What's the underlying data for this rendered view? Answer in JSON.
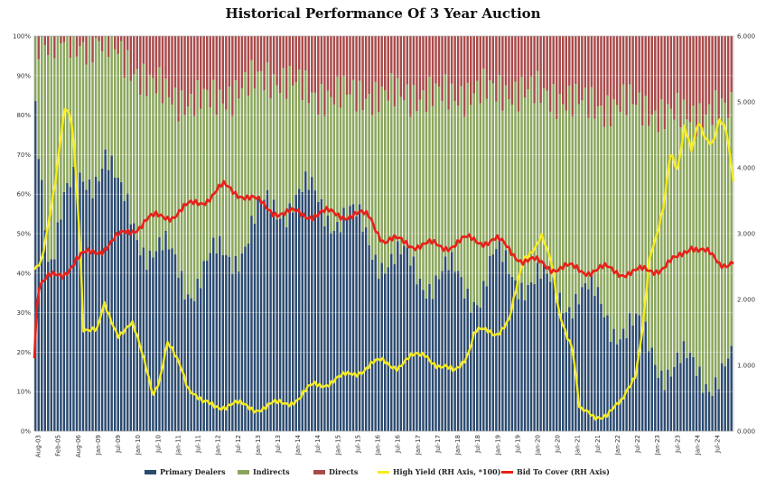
{
  "chart_data": {
    "type": "bar",
    "title": "Historical Performance Of 3 Year Auction",
    "stacked_percent": true,
    "left_axis": {
      "ylim": [
        0,
        100
      ],
      "ticks": [
        "0%",
        "10%",
        "20%",
        "30%",
        "40%",
        "50%",
        "60%",
        "70%",
        "80%",
        "90%",
        "100%"
      ]
    },
    "right_axis": {
      "ylim": [
        0,
        6
      ],
      "ticks": [
        "0.000",
        "1.000",
        "2.000",
        "3.000",
        "4.000",
        "5.000",
        "6.000"
      ]
    },
    "x_ticks": [
      "Aug-03",
      "Feb-05",
      "Aug-06",
      "Jan-09",
      "Jul-09",
      "Jan-10",
      "Jul-10",
      "Jan-11",
      "Jul-11",
      "Jan-12",
      "Jul-12",
      "Jan-13",
      "Jul-13",
      "Jan-14",
      "Jul-14",
      "Jan-15",
      "Jul-15",
      "Jan-16",
      "Jul-16",
      "Jan-17",
      "Jul-17",
      "Jan-18",
      "Jul-18",
      "Jan-19",
      "Jul-19",
      "Jan-20",
      "Jul-20",
      "Jan-21",
      "Jul-21",
      "Jan-22",
      "Jul-22",
      "Jan-23",
      "Jul-23",
      "Jan-24",
      "Jul-24"
    ],
    "grid": true,
    "legend_position": "bottom",
    "series": [
      {
        "name": "Primary Dealers",
        "axis": "left",
        "kind": "bar",
        "color": "#2b4a6f",
        "keypoints": [
          [
            0,
            80
          ],
          [
            0.02,
            45
          ],
          [
            0.04,
            58
          ],
          [
            0.06,
            60
          ],
          [
            0.08,
            65
          ],
          [
            0.1,
            72
          ],
          [
            0.12,
            58
          ],
          [
            0.16,
            48
          ],
          [
            0.22,
            38
          ],
          [
            0.28,
            45
          ],
          [
            0.33,
            55
          ],
          [
            0.37,
            60
          ],
          [
            0.4,
            58
          ],
          [
            0.44,
            55
          ],
          [
            0.48,
            48
          ],
          [
            0.52,
            42
          ],
          [
            0.56,
            40
          ],
          [
            0.6,
            38
          ],
          [
            0.64,
            36
          ],
          [
            0.66,
            42
          ],
          [
            0.7,
            40
          ],
          [
            0.74,
            35
          ],
          [
            0.78,
            35
          ],
          [
            0.82,
            30
          ],
          [
            0.86,
            25
          ],
          [
            0.9,
            18
          ],
          [
            0.94,
            15
          ],
          [
            0.97,
            15
          ],
          [
            1.0,
            15
          ]
        ]
      },
      {
        "name": "Indirects",
        "axis": "left",
        "kind": "bar",
        "color": "#8aa65c",
        "keypoints": [
          [
            0,
            20
          ],
          [
            0.02,
            53
          ],
          [
            0.04,
            40
          ],
          [
            0.06,
            38
          ],
          [
            0.08,
            33
          ],
          [
            0.1,
            26
          ],
          [
            0.12,
            38
          ],
          [
            0.16,
            40
          ],
          [
            0.22,
            45
          ],
          [
            0.28,
            40
          ],
          [
            0.33,
            35
          ],
          [
            0.37,
            28
          ],
          [
            0.4,
            27
          ],
          [
            0.44,
            30
          ],
          [
            0.48,
            37
          ],
          [
            0.52,
            43
          ],
          [
            0.56,
            45
          ],
          [
            0.6,
            47
          ],
          [
            0.64,
            50
          ],
          [
            0.66,
            44
          ],
          [
            0.7,
            46
          ],
          [
            0.74,
            50
          ],
          [
            0.78,
            48
          ],
          [
            0.82,
            52
          ],
          [
            0.86,
            58
          ],
          [
            0.9,
            62
          ],
          [
            0.94,
            65
          ],
          [
            0.97,
            66
          ],
          [
            1.0,
            66
          ]
        ]
      },
      {
        "name": "Directs",
        "axis": "left",
        "kind": "bar",
        "color": "#a94a4a"
      },
      {
        "name": "High Yield (RH Axis, *100)",
        "axis": "right",
        "kind": "line",
        "color": "#f6ec1f",
        "keypoints": [
          [
            0,
            2.4
          ],
          [
            0.01,
            2.6
          ],
          [
            0.02,
            3.2
          ],
          [
            0.03,
            3.8
          ],
          [
            0.04,
            4.6
          ],
          [
            0.045,
            4.9
          ],
          [
            0.055,
            4.6
          ],
          [
            0.065,
            3.0
          ],
          [
            0.07,
            1.6
          ],
          [
            0.09,
            1.5
          ],
          [
            0.1,
            1.9
          ],
          [
            0.12,
            1.5
          ],
          [
            0.14,
            1.6
          ],
          [
            0.16,
            1.0
          ],
          [
            0.17,
            0.6
          ],
          [
            0.18,
            0.8
          ],
          [
            0.19,
            1.3
          ],
          [
            0.21,
            1.0
          ],
          [
            0.22,
            0.7
          ],
          [
            0.24,
            0.4
          ],
          [
            0.28,
            0.4
          ],
          [
            0.33,
            0.35
          ],
          [
            0.36,
            0.45
          ],
          [
            0.38,
            0.5
          ],
          [
            0.4,
            0.7
          ],
          [
            0.44,
            0.8
          ],
          [
            0.48,
            1.0
          ],
          [
            0.5,
            1.05
          ],
          [
            0.52,
            1.0
          ],
          [
            0.54,
            1.1
          ],
          [
            0.56,
            1.2
          ],
          [
            0.58,
            0.95
          ],
          [
            0.6,
            0.9
          ],
          [
            0.62,
            1.2
          ],
          [
            0.63,
            1.5
          ],
          [
            0.66,
            1.5
          ],
          [
            0.68,
            1.7
          ],
          [
            0.7,
            2.6
          ],
          [
            0.72,
            2.9
          ],
          [
            0.725,
            3.0
          ],
          [
            0.74,
            2.5
          ],
          [
            0.75,
            1.8
          ],
          [
            0.77,
            1.3
          ],
          [
            0.78,
            0.3
          ],
          [
            0.8,
            0.2
          ],
          [
            0.82,
            0.3
          ],
          [
            0.84,
            0.4
          ],
          [
            0.86,
            0.9
          ],
          [
            0.87,
            1.6
          ],
          [
            0.88,
            2.6
          ],
          [
            0.89,
            2.9
          ],
          [
            0.9,
            3.4
          ],
          [
            0.91,
            4.3
          ],
          [
            0.92,
            4.0
          ],
          [
            0.93,
            4.6
          ],
          [
            0.94,
            4.2
          ],
          [
            0.95,
            4.7
          ],
          [
            0.96,
            4.5
          ],
          [
            0.97,
            4.4
          ],
          [
            0.98,
            4.7
          ],
          [
            0.99,
            4.5
          ],
          [
            1.0,
            3.8
          ]
        ]
      },
      {
        "name": "Bid To Cover (RH Axis)",
        "axis": "right",
        "kind": "line",
        "color": "#e8201a",
        "keypoints": [
          [
            0,
            1.2
          ],
          [
            0.005,
            2.2
          ],
          [
            0.02,
            2.3
          ],
          [
            0.04,
            2.4
          ],
          [
            0.06,
            2.6
          ],
          [
            0.08,
            2.7
          ],
          [
            0.1,
            2.8
          ],
          [
            0.13,
            3.0
          ],
          [
            0.16,
            3.2
          ],
          [
            0.2,
            3.3
          ],
          [
            0.24,
            3.5
          ],
          [
            0.27,
            3.7
          ],
          [
            0.3,
            3.6
          ],
          [
            0.33,
            3.4
          ],
          [
            0.36,
            3.3
          ],
          [
            0.4,
            3.3
          ],
          [
            0.44,
            3.3
          ],
          [
            0.48,
            3.25
          ],
          [
            0.5,
            2.9
          ],
          [
            0.54,
            2.85
          ],
          [
            0.58,
            2.8
          ],
          [
            0.62,
            2.9
          ],
          [
            0.66,
            2.9
          ],
          [
            0.7,
            2.6
          ],
          [
            0.74,
            2.5
          ],
          [
            0.78,
            2.45
          ],
          [
            0.8,
            2.45
          ],
          [
            0.82,
            2.45
          ],
          [
            0.86,
            2.4
          ],
          [
            0.9,
            2.5
          ],
          [
            0.92,
            2.6
          ],
          [
            0.94,
            2.85
          ],
          [
            0.96,
            2.7
          ],
          [
            0.98,
            2.55
          ],
          [
            1.0,
            2.6
          ]
        ]
      }
    ]
  }
}
